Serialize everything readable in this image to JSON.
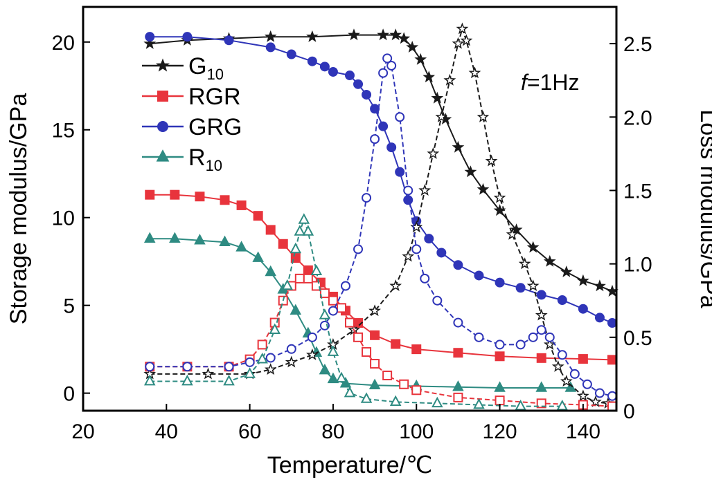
{
  "chart_data": {
    "type": "line",
    "xlabel": "Temperature/℃",
    "ylabel": "Storage modulus/GPa",
    "y2label": "Loss modulus/GPa",
    "annotation": {
      "italic": "f",
      "rest": "=1Hz"
    },
    "xlim": [
      20,
      148
    ],
    "ylim": [
      -1,
      22
    ],
    "y2lim": [
      0,
      2.75
    ],
    "xticks": [
      20,
      40,
      60,
      80,
      100,
      120,
      140
    ],
    "yticks": [
      0,
      5,
      10,
      15,
      20
    ],
    "y2ticks": [
      0,
      0.5,
      1.0,
      1.5,
      2.0,
      2.5
    ],
    "xtick_labels": [
      "20",
      "40",
      "60",
      "80",
      "100",
      "120",
      "140"
    ],
    "ytick_labels": [
      "0",
      "5",
      "10",
      "15",
      "20"
    ],
    "y2tick_labels": [
      "0",
      "0.5",
      "1.0",
      "1.5",
      "2.0",
      "2.5"
    ],
    "legend": [
      {
        "id": "g10",
        "label": "G",
        "sub": "10",
        "color": "#1a1a1a",
        "marker": "star"
      },
      {
        "id": "rgr",
        "label": "RGR",
        "sub": "",
        "color": "#e8343c",
        "marker": "square"
      },
      {
        "id": "grg",
        "label": "GRG",
        "sub": "",
        "color": "#2f35b8",
        "marker": "circle"
      },
      {
        "id": "r10",
        "label": "R",
        "sub": "10",
        "color": "#2e8b82",
        "marker": "triangle"
      }
    ],
    "series": [
      {
        "id": "g10",
        "kind": "storage",
        "axis": "left",
        "points": [
          [
            36,
            19.9
          ],
          [
            45,
            20.1
          ],
          [
            55,
            20.2
          ],
          [
            65,
            20.3
          ],
          [
            75,
            20.3
          ],
          [
            85,
            20.4
          ],
          [
            92,
            20.4
          ],
          [
            95,
            20.4
          ],
          [
            97,
            20.2
          ],
          [
            99,
            19.7
          ],
          [
            101,
            19.0
          ],
          [
            103,
            18.0
          ],
          [
            105,
            16.8
          ],
          [
            107,
            15.6
          ],
          [
            110,
            14.0
          ],
          [
            113,
            12.6
          ],
          [
            116,
            11.6
          ],
          [
            120,
            10.4
          ],
          [
            124,
            9.3
          ],
          [
            128,
            8.3
          ],
          [
            132,
            7.5
          ],
          [
            136,
            6.9
          ],
          [
            140,
            6.4
          ],
          [
            144,
            6.1
          ],
          [
            147,
            5.8
          ]
        ]
      },
      {
        "id": "rgr",
        "kind": "storage",
        "axis": "left",
        "points": [
          [
            36,
            11.3
          ],
          [
            42,
            11.3
          ],
          [
            48,
            11.2
          ],
          [
            54,
            11.0
          ],
          [
            58,
            10.7
          ],
          [
            62,
            10.1
          ],
          [
            65,
            9.3
          ],
          [
            68,
            8.5
          ],
          [
            71,
            7.7
          ],
          [
            74,
            7.0
          ],
          [
            77,
            6.3
          ],
          [
            80,
            5.5
          ],
          [
            83,
            4.7
          ],
          [
            86,
            4.0
          ],
          [
            90,
            3.3
          ],
          [
            95,
            2.8
          ],
          [
            100,
            2.5
          ],
          [
            110,
            2.3
          ],
          [
            120,
            2.1
          ],
          [
            130,
            2.0
          ],
          [
            140,
            1.95
          ],
          [
            147,
            1.9
          ]
        ]
      },
      {
        "id": "grg",
        "kind": "storage",
        "axis": "left",
        "points": [
          [
            36,
            20.3
          ],
          [
            45,
            20.3
          ],
          [
            55,
            20.1
          ],
          [
            65,
            19.7
          ],
          [
            70,
            19.3
          ],
          [
            75,
            18.9
          ],
          [
            78,
            18.6
          ],
          [
            80,
            18.3
          ],
          [
            84,
            18.1
          ],
          [
            86,
            17.6
          ],
          [
            88,
            17.0
          ],
          [
            90,
            16.2
          ],
          [
            92,
            15.2
          ],
          [
            94,
            14.0
          ],
          [
            96,
            12.6
          ],
          [
            98,
            11.0
          ],
          [
            100,
            9.8
          ],
          [
            103,
            8.8
          ],
          [
            106,
            8.0
          ],
          [
            110,
            7.3
          ],
          [
            115,
            6.7
          ],
          [
            120,
            6.3
          ],
          [
            125,
            6.0
          ],
          [
            130,
            5.6
          ],
          [
            135,
            5.3
          ],
          [
            140,
            4.8
          ],
          [
            144,
            4.3
          ],
          [
            147,
            4.0
          ]
        ]
      },
      {
        "id": "r10",
        "kind": "storage",
        "axis": "left",
        "points": [
          [
            36,
            8.8
          ],
          [
            42,
            8.8
          ],
          [
            48,
            8.7
          ],
          [
            54,
            8.6
          ],
          [
            58,
            8.3
          ],
          [
            62,
            7.7
          ],
          [
            65,
            6.9
          ],
          [
            68,
            5.9
          ],
          [
            71,
            4.7
          ],
          [
            74,
            3.4
          ],
          [
            76,
            2.3
          ],
          [
            78,
            1.3
          ],
          [
            80,
            0.8
          ],
          [
            83,
            0.55
          ],
          [
            90,
            0.45
          ],
          [
            100,
            0.4
          ],
          [
            110,
            0.35
          ],
          [
            120,
            0.3
          ],
          [
            130,
            0.3
          ],
          [
            137,
            0.3
          ]
        ]
      },
      {
        "id": "g10",
        "kind": "loss",
        "axis": "right",
        "points": [
          [
            36,
            0.25
          ],
          [
            50,
            0.25
          ],
          [
            60,
            0.25
          ],
          [
            65,
            0.28
          ],
          [
            70,
            0.33
          ],
          [
            75,
            0.38
          ],
          [
            80,
            0.45
          ],
          [
            85,
            0.55
          ],
          [
            90,
            0.68
          ],
          [
            95,
            0.85
          ],
          [
            98,
            1.05
          ],
          [
            100,
            1.25
          ],
          [
            102,
            1.5
          ],
          [
            104,
            1.75
          ],
          [
            106,
            2.0
          ],
          [
            108,
            2.25
          ],
          [
            110,
            2.5
          ],
          [
            111,
            2.6
          ],
          [
            112,
            2.52
          ],
          [
            114,
            2.3
          ],
          [
            116,
            2.0
          ],
          [
            118,
            1.7
          ],
          [
            120,
            1.45
          ],
          [
            123,
            1.2
          ],
          [
            126,
            1.0
          ],
          [
            128,
            0.85
          ],
          [
            130,
            0.65
          ],
          [
            132,
            0.45
          ],
          [
            134,
            0.3
          ],
          [
            136,
            0.2
          ],
          [
            140,
            0.1
          ],
          [
            143,
            0.06
          ],
          [
            146,
            0.05
          ]
        ]
      },
      {
        "id": "rgr",
        "kind": "loss",
        "axis": "right",
        "points": [
          [
            36,
            0.3
          ],
          [
            45,
            0.3
          ],
          [
            55,
            0.3
          ],
          [
            60,
            0.35
          ],
          [
            63,
            0.45
          ],
          [
            66,
            0.6
          ],
          [
            68,
            0.75
          ],
          [
            70,
            0.85
          ],
          [
            72,
            0.9
          ],
          [
            74,
            0.9
          ],
          [
            76,
            0.85
          ],
          [
            78,
            0.8
          ],
          [
            80,
            0.75
          ],
          [
            82,
            0.7
          ],
          [
            84,
            0.6
          ],
          [
            86,
            0.5
          ],
          [
            88,
            0.4
          ],
          [
            90,
            0.32
          ],
          [
            93,
            0.24
          ],
          [
            97,
            0.18
          ],
          [
            100,
            0.14
          ],
          [
            110,
            0.09
          ],
          [
            120,
            0.07
          ],
          [
            130,
            0.05
          ],
          [
            140,
            0.04
          ],
          [
            147,
            0.03
          ]
        ]
      },
      {
        "id": "grg",
        "kind": "loss",
        "axis": "right",
        "points": [
          [
            36,
            0.3
          ],
          [
            45,
            0.3
          ],
          [
            55,
            0.3
          ],
          [
            60,
            0.33
          ],
          [
            65,
            0.36
          ],
          [
            70,
            0.42
          ],
          [
            75,
            0.5
          ],
          [
            78,
            0.58
          ],
          [
            80,
            0.68
          ],
          [
            83,
            0.85
          ],
          [
            86,
            1.1
          ],
          [
            88,
            1.45
          ],
          [
            90,
            1.85
          ],
          [
            92,
            2.3
          ],
          [
            93,
            2.4
          ],
          [
            94,
            2.35
          ],
          [
            96,
            2.0
          ],
          [
            98,
            1.5
          ],
          [
            100,
            1.1
          ],
          [
            102,
            0.9
          ],
          [
            105,
            0.75
          ],
          [
            110,
            0.6
          ],
          [
            115,
            0.5
          ],
          [
            120,
            0.45
          ],
          [
            125,
            0.45
          ],
          [
            128,
            0.5
          ],
          [
            130,
            0.55
          ],
          [
            132,
            0.5
          ],
          [
            135,
            0.38
          ],
          [
            138,
            0.25
          ],
          [
            141,
            0.18
          ],
          [
            144,
            0.12
          ],
          [
            147,
            0.1
          ]
        ]
      },
      {
        "id": "r10",
        "kind": "loss",
        "axis": "right",
        "points": [
          [
            36,
            0.2
          ],
          [
            45,
            0.2
          ],
          [
            55,
            0.2
          ],
          [
            60,
            0.25
          ],
          [
            63,
            0.35
          ],
          [
            66,
            0.55
          ],
          [
            69,
            0.85
          ],
          [
            71,
            1.1
          ],
          [
            72,
            1.22
          ],
          [
            73,
            1.3
          ],
          [
            74,
            1.22
          ],
          [
            76,
            0.95
          ],
          [
            78,
            0.65
          ],
          [
            80,
            0.4
          ],
          [
            82,
            0.22
          ],
          [
            84,
            0.12
          ],
          [
            88,
            0.08
          ],
          [
            95,
            0.06
          ],
          [
            105,
            0.05
          ],
          [
            115,
            0.04
          ],
          [
            125,
            0.03
          ],
          [
            135,
            0.03
          ]
        ]
      }
    ]
  }
}
